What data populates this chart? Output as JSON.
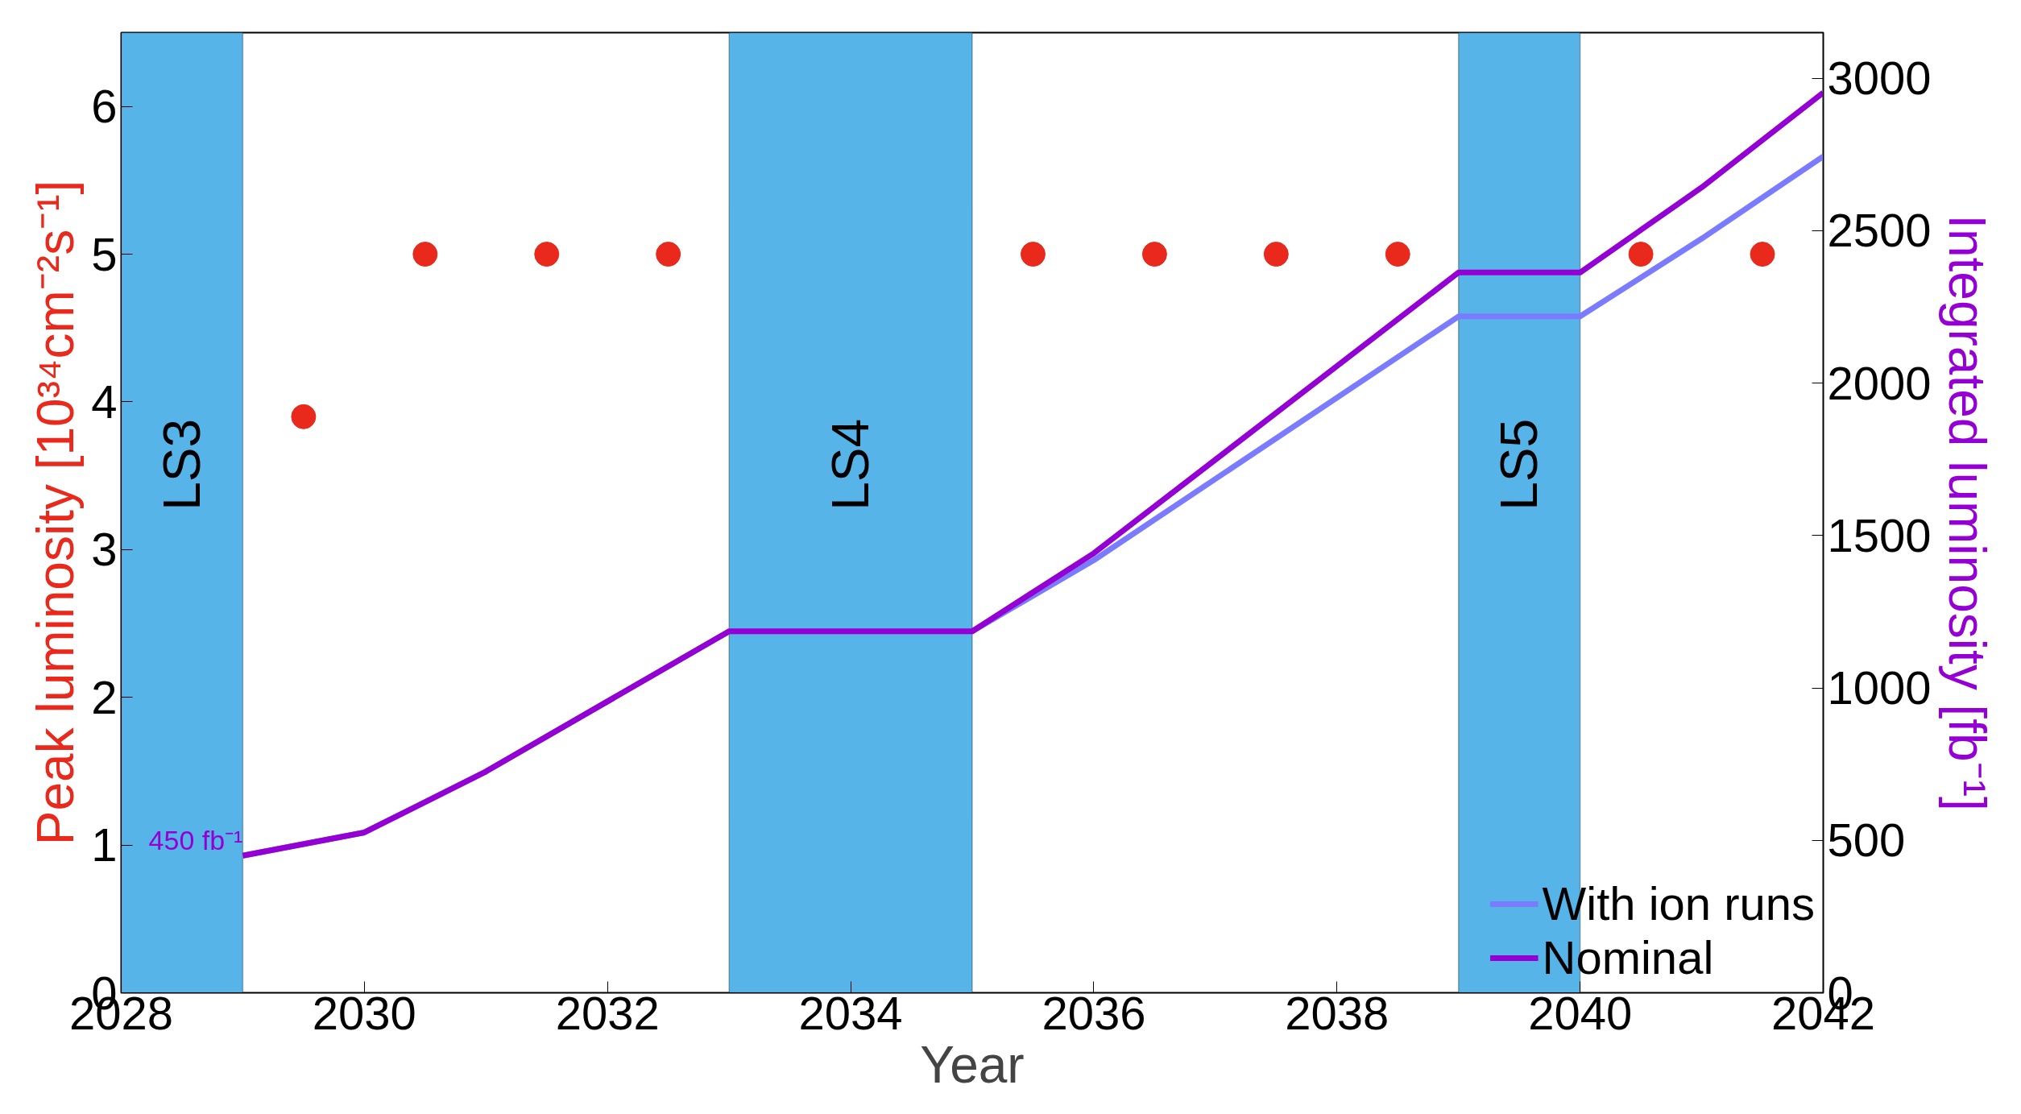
{
  "chart_data": {
    "type": "scatter",
    "xlabel": "Year",
    "ylabel": "Peak luminosity [10³⁴cm⁻²s⁻¹]",
    "y2label": "Integrated luminosity [fb⁻¹]",
    "x": [
      2029.5,
      2030.5,
      2031.5,
      2032.5,
      2035.5,
      2036.5,
      2037.5,
      2038.5,
      2040.5,
      2041.5
    ],
    "series": [
      {
        "color": "#e8291c",
        "marker": "circle",
        "values": [
          3.9,
          5,
          5,
          5,
          5,
          5,
          5,
          5,
          5,
          5
        ]
      },
      {
        "type": "line",
        "name": "With ion runs",
        "color": "#7b7bff",
        "axis": "y2",
        "x": [
          2029,
          2030,
          2031,
          2033,
          2035,
          2036,
          2039,
          2040,
          2041,
          2042
        ],
        "values": [
          450,
          526,
          726,
          1186,
          1186,
          1419,
          2219,
          2219,
          2474,
          2744
        ]
      },
      {
        "type": "line",
        "name": "Nominal",
        "color": "#9400d3",
        "axis": "y2",
        "x": [
          2029,
          2030,
          2031,
          2033,
          2035,
          2036,
          2039,
          2040,
          2041,
          2042
        ],
        "values": [
          450,
          526,
          726,
          1186,
          1186,
          1442,
          2363,
          2363,
          2642,
          2953
        ]
      }
    ],
    "xlim": [
      2028,
      2042
    ],
    "xticks": [
      2028,
      2030,
      2032,
      2034,
      2036,
      2038,
      2040,
      2042
    ],
    "ylim": [
      0,
      6.5
    ],
    "yticks": [
      0,
      1,
      2,
      3,
      4,
      5,
      6
    ],
    "y2lim": [
      0,
      3150
    ],
    "y2ticks": [
      0,
      500,
      1000,
      1500,
      2000,
      2500,
      3000
    ],
    "bands": [
      {
        "axis": "x",
        "from": 2028,
        "to": 2029,
        "label": "LS3",
        "color": "#56b4e9"
      },
      {
        "axis": "x",
        "from": 2033,
        "to": 2035,
        "label": "LS4",
        "color": "#56b4e9"
      },
      {
        "axis": "x",
        "from": 2039,
        "to": 2040,
        "label": "LS5",
        "color": "#56b4e9"
      }
    ],
    "annotations": [
      "450 fb⁻¹"
    ],
    "legend": "bottom right",
    "grid": false,
    "line_style": "solid"
  }
}
